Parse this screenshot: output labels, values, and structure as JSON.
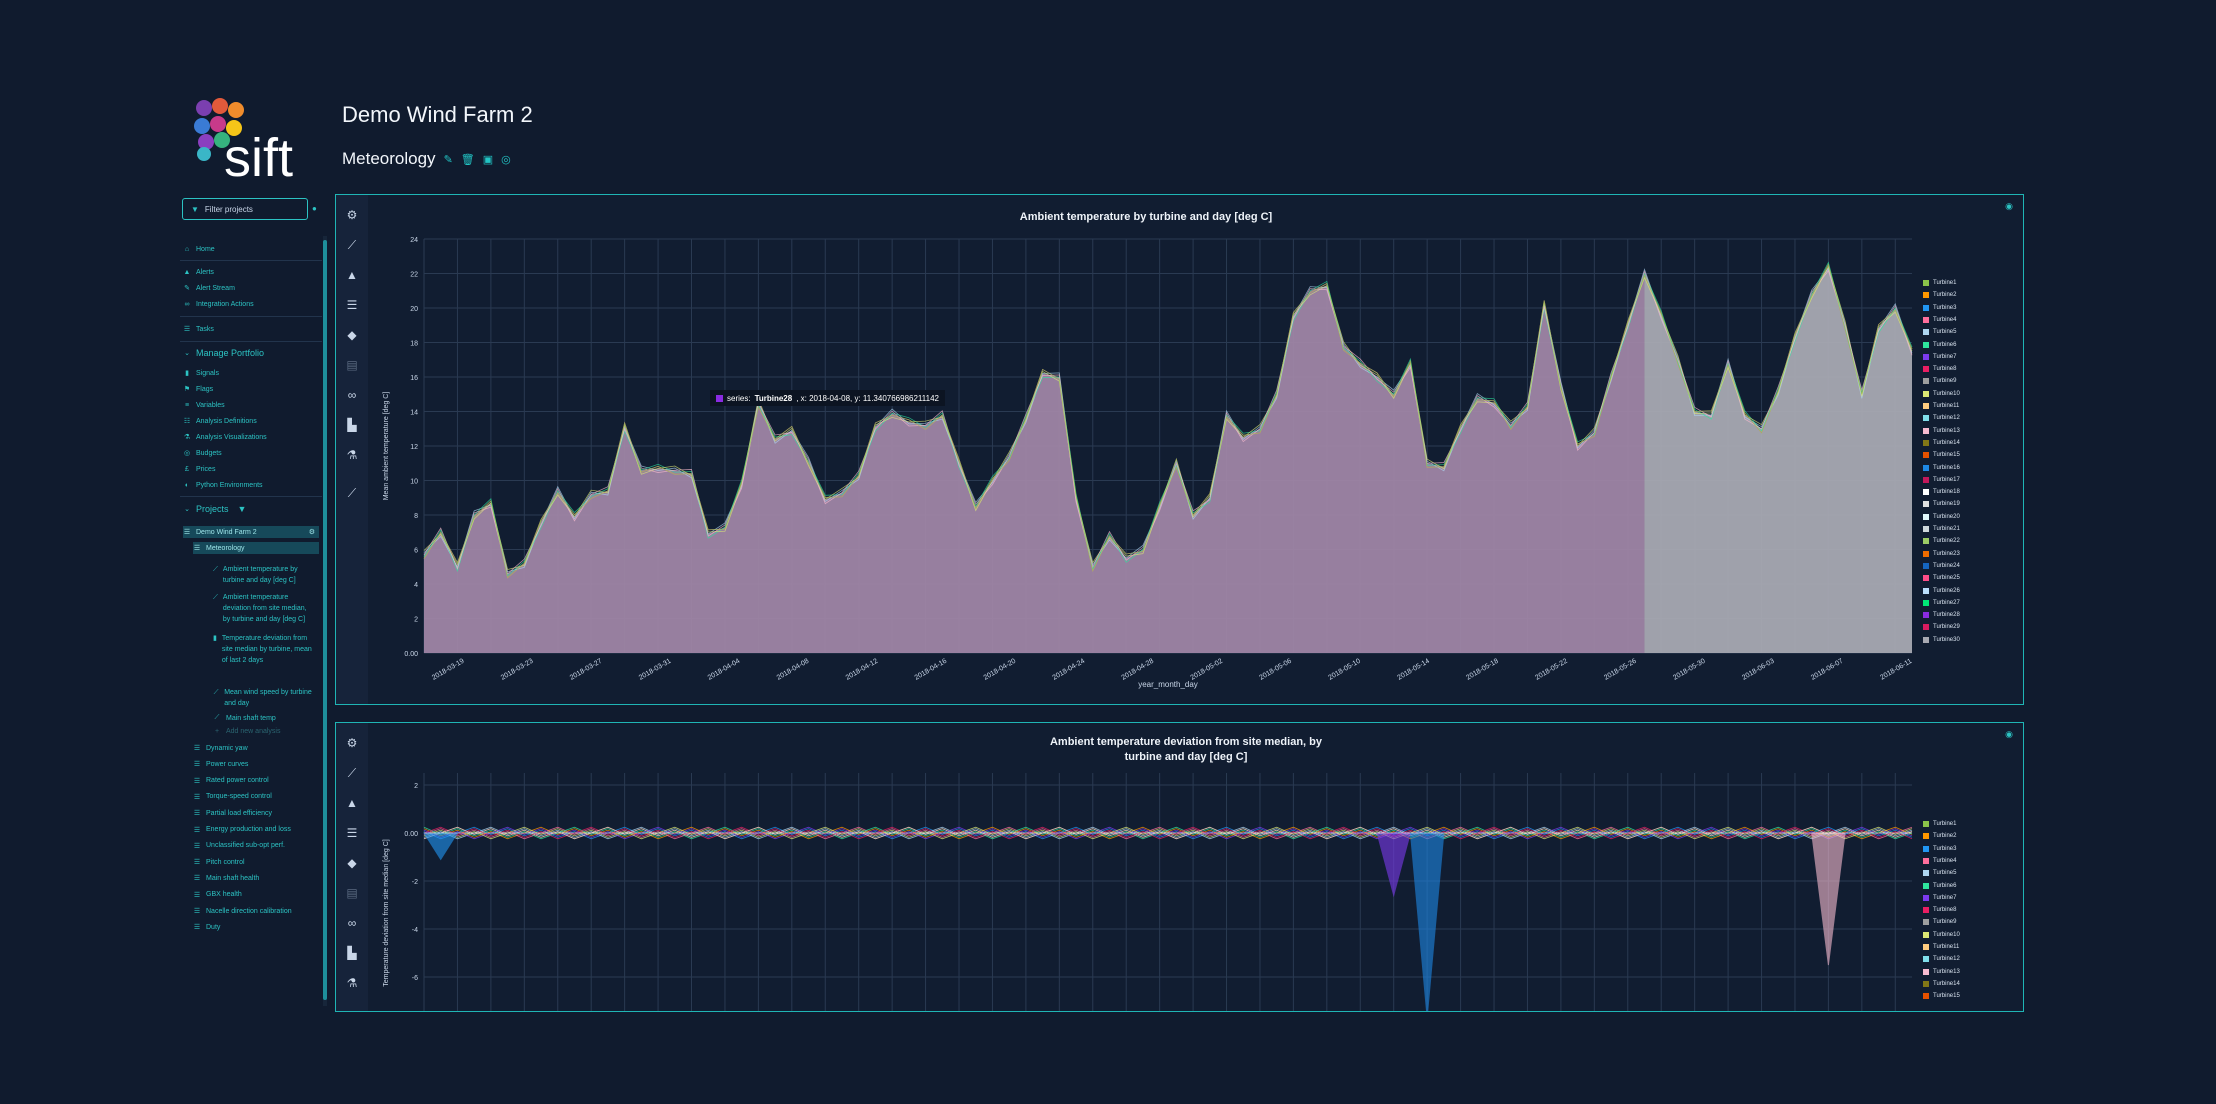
{
  "project": {
    "title": "Demo Wind Farm 2"
  },
  "view": {
    "title": "Meteorology"
  },
  "sidebar": {
    "filter_placeholder": "Filter projects",
    "nav": {
      "home": "Home",
      "alerts": "Alerts",
      "alert_stream": "Alert Stream",
      "integration_actions": "Integration Actions",
      "tasks": "Tasks",
      "manage_portfolio": "Manage Portfolio",
      "signals": "Signals",
      "flags": "Flags",
      "variables": "Variables",
      "analysis_definitions": "Analysis Definitions",
      "analysis_visualizations": "Analysis Visualizations",
      "budgets": "Budgets",
      "prices": "Prices",
      "python_environments": "Python Environments",
      "projects": "Projects",
      "demo_wind_farm": "Demo Wind Farm 2",
      "meteorology": "Meteorology",
      "a1": "Ambient temperature by turbine and day [deg C]",
      "a2": "Ambient temperature deviation from site median, by turbine and day [deg C]",
      "a3": "Temperature deviation from site median by turbine, mean of last 2 days",
      "a4": "Mean wind speed by turbine and day",
      "a5": "Main shaft temp",
      "add_new": "Add new analysis",
      "views": [
        "Dynamic yaw",
        "Power curves",
        "Rated power control",
        "Torque-speed control",
        "Partial load efficiency",
        "Energy production and loss",
        "Unclassified sub-opt perf.",
        "Pitch control",
        "Main shaft health",
        "GBX health",
        "Nacelle direction calibration",
        "Duty"
      ]
    }
  },
  "tooltip": {
    "prefix": "series:",
    "series": "Turbine28",
    "rest": ", x: 2018-04-08, y: 11.340766986211142"
  },
  "colors": {
    "accent": "#22c5c5",
    "background": "#101b2e",
    "area": "#a388a8",
    "area_tail": "#a8a9b2"
  },
  "legend_series": [
    {
      "name": "Turbine1",
      "color": "#8bc34a"
    },
    {
      "name": "Turbine2",
      "color": "#ff9800"
    },
    {
      "name": "Turbine3",
      "color": "#2196f3"
    },
    {
      "name": "Turbine4",
      "color": "#ff6e9c"
    },
    {
      "name": "Turbine5",
      "color": "#aed6f1"
    },
    {
      "name": "Turbine6",
      "color": "#2ee59d"
    },
    {
      "name": "Turbine7",
      "color": "#7c3aed"
    },
    {
      "name": "Turbine8",
      "color": "#e91e63"
    },
    {
      "name": "Turbine9",
      "color": "#9e9e9e"
    },
    {
      "name": "Turbine10",
      "color": "#dce775"
    },
    {
      "name": "Turbine11",
      "color": "#ffcc80"
    },
    {
      "name": "Turbine12",
      "color": "#80deea"
    },
    {
      "name": "Turbine13",
      "color": "#f8bbd0"
    },
    {
      "name": "Turbine14",
      "color": "#827717"
    },
    {
      "name": "Turbine15",
      "color": "#e65100"
    },
    {
      "name": "Turbine16",
      "color": "#1e88e5"
    },
    {
      "name": "Turbine17",
      "color": "#c2185b"
    },
    {
      "name": "Turbine18",
      "color": "#ffffff"
    },
    {
      "name": "Turbine19",
      "color": "#e0e0e0"
    },
    {
      "name": "Turbine20",
      "color": "#e0f7fa"
    },
    {
      "name": "Turbine21",
      "color": "#cfd8dc"
    },
    {
      "name": "Turbine22",
      "color": "#9ccc65"
    },
    {
      "name": "Turbine23",
      "color": "#ef6c00"
    },
    {
      "name": "Turbine24",
      "color": "#1565c0"
    },
    {
      "name": "Turbine25",
      "color": "#ff4d88"
    },
    {
      "name": "Turbine26",
      "color": "#bbdefb"
    },
    {
      "name": "Turbine27",
      "color": "#00e676"
    },
    {
      "name": "Turbine28",
      "color": "#8a2be2"
    },
    {
      "name": "Turbine29",
      "color": "#d81b60"
    },
    {
      "name": "Turbine30",
      "color": "#a8a9b2"
    }
  ],
  "chart_data": [
    {
      "type": "area",
      "title": "Ambient temperature by turbine and day [deg C]",
      "xlabel": "year_month_day",
      "ylabel": "Mean ambient temperature [deg C]",
      "ylim": [
        0,
        24
      ],
      "yticks": [
        "0.00",
        "2",
        "4",
        "6",
        "8",
        "10",
        "12",
        "14",
        "16",
        "18",
        "20",
        "22",
        "24"
      ],
      "xticks": [
        "2018-03-19",
        "2018-03-23",
        "2018-03-27",
        "2018-03-31",
        "2018-04-04",
        "2018-04-08",
        "2018-04-12",
        "2018-04-16",
        "2018-04-20",
        "2018-04-24",
        "2018-04-28",
        "2018-05-02",
        "2018-05-06",
        "2018-05-10",
        "2018-05-14",
        "2018-05-18",
        "2018-05-22",
        "2018-05-26",
        "2018-05-30",
        "2018-06-03",
        "2018-06-07",
        "2018-06-11"
      ],
      "grid": true,
      "legend_placement": "right",
      "series_shown": "Turbine1 … Turbine30",
      "values": [
        5.7,
        7.0,
        5.0,
        8.0,
        8.7,
        4.6,
        5.2,
        7.5,
        9.4,
        7.9,
        9.2,
        9.4,
        13.1,
        10.6,
        10.7,
        10.6,
        10.4,
        6.9,
        7.3,
        9.8,
        14.5,
        12.4,
        12.9,
        11.1,
        8.9,
        9.3,
        10.3,
        13.1,
        13.9,
        13.4,
        13.2,
        13.8,
        11.0,
        8.5,
        10.0,
        11.4,
        13.6,
        16.2,
        16.0,
        9.0,
        5.0,
        6.8,
        5.5,
        6.0,
        8.5,
        11.0,
        8.0,
        9.0,
        13.8,
        12.5,
        13.0,
        15.0,
        19.5,
        21.0,
        21.3,
        17.8,
        16.8,
        16.0,
        15.0,
        16.8,
        11.0,
        10.8,
        13.0,
        14.8,
        14.5,
        13.2,
        14.3,
        20.2,
        15.5,
        12.0,
        12.8,
        16.0,
        19.0,
        22.0,
        19.6,
        17.0,
        14.0,
        13.8,
        16.8,
        13.8,
        13.0,
        15.2,
        18.3,
        20.8,
        22.4,
        19.0,
        15.0,
        18.8,
        20.0,
        17.5
      ]
    },
    {
      "type": "area",
      "title": "Ambient temperature deviation from site median, by turbine and day [deg C]",
      "ylabel": "Temperature deviation from site median [deg C]",
      "ylim": [
        -7.5,
        2.5
      ],
      "yticks": [
        "2",
        "0.00",
        "-2",
        "-4",
        "-6"
      ],
      "grid": true,
      "legend_placement": "right",
      "baseline": 0.0,
      "notable_dips": [
        {
          "series": "Turbine3",
          "x_index": 1,
          "value": -1.1
        },
        {
          "series": "Turbine7",
          "x_index": 58,
          "value": -2.6
        },
        {
          "series": "Turbine16",
          "x_index": 60,
          "value": -7.7
        },
        {
          "series": "Turbine13",
          "x_index": 84,
          "value": -5.5
        }
      ]
    }
  ]
}
